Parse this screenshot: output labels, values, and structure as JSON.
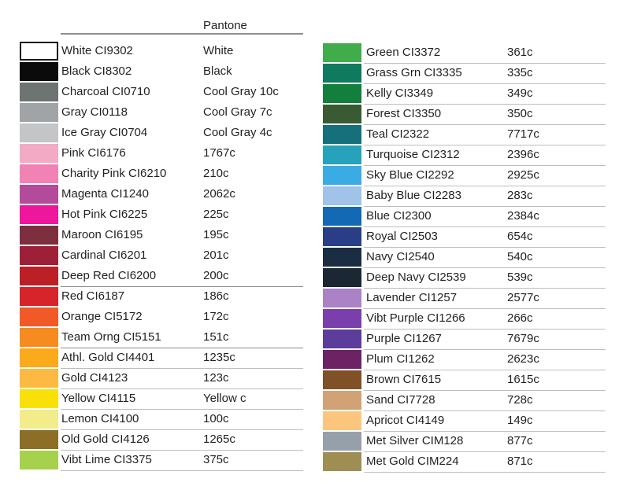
{
  "colors": {
    "background": "#ffffff",
    "text": "#231f20"
  },
  "chart_data": {
    "type": "table",
    "title": "Pantone",
    "header": {
      "pantone_label": "Pantone"
    },
    "columns": [
      "swatch_color",
      "name_and_code",
      "pantone"
    ],
    "left_rows": [
      {
        "label": "White CI9302",
        "pantone": "White",
        "color": "#ffffff",
        "border": "#1a1a1a",
        "divider": null
      },
      {
        "label": "Black CI8302",
        "pantone": "Black",
        "color": "#0b0b0b",
        "divider": null
      },
      {
        "label": "Charcoal CI0710",
        "pantone": "Cool Gray 10c",
        "color": "#6d7472",
        "divider": null
      },
      {
        "label": "Gray CI0118",
        "pantone": "Cool Gray 7c",
        "color": "#a1a4a6",
        "divider": null
      },
      {
        "label": "Ice Gray CI0704",
        "pantone": "Cool Gray 4c",
        "color": "#c3c5c7",
        "divider": null
      },
      {
        "label": "Pink CI6176",
        "pantone": "1767c",
        "color": "#f3aac4",
        "divider": null
      },
      {
        "label": "Charity Pink CI6210",
        "pantone": "210c",
        "color": "#f083b4",
        "divider": null
      },
      {
        "label": "Magenta CI1240",
        "pantone": "2062c",
        "color": "#b44b9a",
        "divider": null
      },
      {
        "label": "Hot Pink CI6225",
        "pantone": "225c",
        "color": "#ee169c",
        "divider": null
      },
      {
        "label": "Maroon CI6195",
        "pantone": "195c",
        "color": "#7d2f3f",
        "divider": null
      },
      {
        "label": "Cardinal CI6201",
        "pantone": "201c",
        "color": "#9e2038",
        "divider": null
      },
      {
        "label": "Deep Red CI6200",
        "pantone": "200c",
        "color": "#ba2026",
        "divider": "dark"
      },
      {
        "label": "Red CI6187",
        "pantone": "186c",
        "color": "#d7232a",
        "divider": null
      },
      {
        "label": "Orange CI5172",
        "pantone": "172c",
        "color": "#f15a27",
        "divider": null
      },
      {
        "label": "Team Orng CI5151",
        "pantone": "151c",
        "color": "#f68b20",
        "divider": "dark"
      },
      {
        "label": "Athl. Gold CI4401",
        "pantone": "1235c",
        "color": "#fbaa1c",
        "divider": "light"
      },
      {
        "label": "Gold CI4123",
        "pantone": "123c",
        "color": "#fcba42",
        "divider": "light"
      },
      {
        "label": "Yellow CI4115",
        "pantone": "Yellow c",
        "color": "#f9e008",
        "divider": "light"
      },
      {
        "label": "Lemon CI4100",
        "pantone": "100c",
        "color": "#f2ec8b",
        "divider": "light"
      },
      {
        "label": "Old Gold CI4126",
        "pantone": "1265c",
        "color": "#8d6e27",
        "divider": "light"
      },
      {
        "label": "Vibt Lime CI3375",
        "pantone": "375c",
        "color": "#a6d14c",
        "divider": "light"
      }
    ],
    "right_rows": [
      {
        "label": "Green CI3372",
        "pantone": "361c",
        "color": "#41ad4a",
        "divider": "light"
      },
      {
        "label": "Grass Grn CI3335",
        "pantone": "335c",
        "color": "#107a5f",
        "divider": "light"
      },
      {
        "label": "Kelly CI3349",
        "pantone": "349c",
        "color": "#137f3c",
        "divider": "light"
      },
      {
        "label": "Forest CI3350",
        "pantone": "350c",
        "color": "#3a5a34",
        "divider": "light"
      },
      {
        "label": "Teal CI2322",
        "pantone": "7717c",
        "color": "#16707c",
        "divider": "light"
      },
      {
        "label": "Turquoise CI2312",
        "pantone": "2396c",
        "color": "#26a3ba",
        "divider": "light"
      },
      {
        "label": "Sky Blue CI2292",
        "pantone": "2925c",
        "color": "#3babe4",
        "divider": "light"
      },
      {
        "label": "Baby Blue CI2283",
        "pantone": "283c",
        "color": "#a1c3e9",
        "divider": "light"
      },
      {
        "label": "Blue CI2300",
        "pantone": "2384c",
        "color": "#1369b4",
        "divider": "light"
      },
      {
        "label": "Royal CI2503",
        "pantone": "654c",
        "color": "#2a3d87",
        "divider": "light"
      },
      {
        "label": "Navy CI2540",
        "pantone": "540c",
        "color": "#1a2d42",
        "divider": "light"
      },
      {
        "label": "Deep Navy CI2539",
        "pantone": "539c",
        "color": "#1b2733",
        "divider": "light"
      },
      {
        "label": "Lavender CI1257",
        "pantone": "2577c",
        "color": "#aa82c5",
        "divider": "light"
      },
      {
        "label": "Vibt Purple CI1266",
        "pantone": "266c",
        "color": "#7b3ead",
        "divider": "light"
      },
      {
        "label": "Purple CI1267",
        "pantone": "7679c",
        "color": "#5c3d9c",
        "divider": "light"
      },
      {
        "label": "Plum CI1262",
        "pantone": "2623c",
        "color": "#6d2363",
        "divider": "light"
      },
      {
        "label": "Brown CI7615",
        "pantone": "1615c",
        "color": "#805026",
        "divider": "light"
      },
      {
        "label": "Sand CI7728",
        "pantone": "728c",
        "color": "#d1a276",
        "divider": "light"
      },
      {
        "label": "Apricot CI4149",
        "pantone": "149c",
        "color": "#fcc57e",
        "divider": "light"
      },
      {
        "label": "Met Silver CIM128",
        "pantone": "877c",
        "color": "#96a0aa",
        "divider": "light"
      },
      {
        "label": "Met Gold CIM224",
        "pantone": "871c",
        "color": "#9f8e54",
        "divider": "light"
      }
    ]
  }
}
